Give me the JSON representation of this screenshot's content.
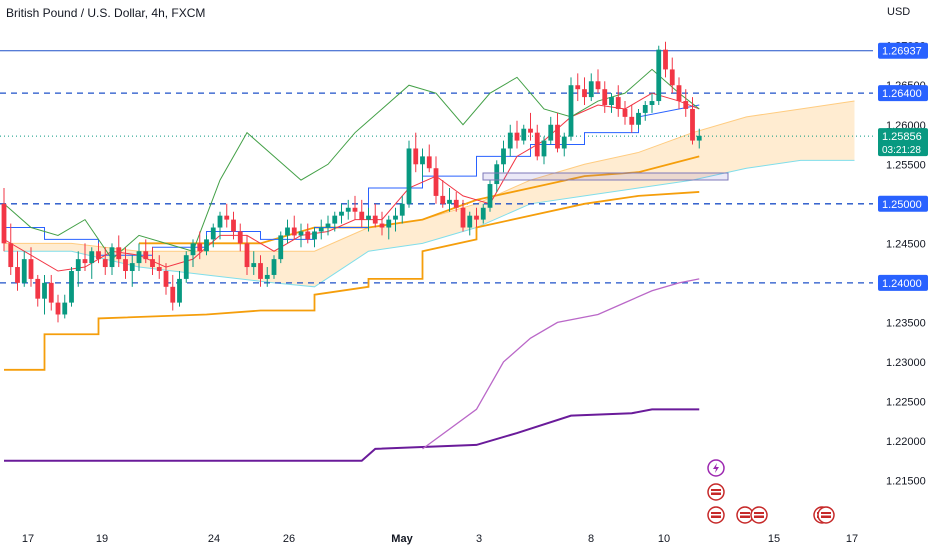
{
  "chart_data": {
    "type": "candlestick",
    "title": "British Pound / U.S. Dollar, 4h, FXCM",
    "currency": "USD",
    "grid": false,
    "colors": {
      "up": "#089981",
      "down": "#f23645",
      "kijun": "#2962ff",
      "tenkan": "#f23645",
      "chikou": "#43a047",
      "cloud_bull": "#b2ebf2",
      "cloud_bear": "#ffe0b2",
      "ma_orange": "#f59e0b",
      "violet_dark": "#6a1b9a",
      "violet_light": "#ba68c8",
      "level": "#1e50c8"
    },
    "y_axis": {
      "min": 1.21,
      "max": 1.273,
      "ticks": [
        "1.21500",
        "1.22000",
        "1.22500",
        "1.23000",
        "1.23500",
        "1.24000",
        "1.24500",
        "1.25000",
        "1.25500",
        "1.26000",
        "1.26500",
        "1.27000"
      ]
    },
    "x_axis": {
      "ticks": [
        {
          "label": "17",
          "x": 17
        },
        {
          "label": "19",
          "x": 19
        },
        {
          "label": "24",
          "x": 24
        },
        {
          "label": "26",
          "x": 26
        },
        {
          "label": "May",
          "x": 31
        },
        {
          "label": "3",
          "x": 35
        },
        {
          "label": "8",
          "x": 41
        },
        {
          "label": "10",
          "x": 45
        },
        {
          "label": "15",
          "x": 51
        },
        {
          "label": "17",
          "x": 55
        }
      ]
    },
    "levels": [
      {
        "price": 1.26937,
        "label": "1.26937",
        "style": "solid"
      },
      {
        "price": 1.264,
        "label": "1.26400",
        "style": "dashed"
      },
      {
        "price": 1.25,
        "label": "1.25000",
        "style": "dashed"
      },
      {
        "price": 1.24,
        "label": "1.24000",
        "style": "dashed"
      }
    ],
    "last_price": {
      "label": "1.25856",
      "countdown": "03:21:28",
      "price": 1.25856
    },
    "candles": [
      [
        1.25,
        1.252,
        1.244,
        1.245
      ],
      [
        1.245,
        1.2475,
        1.241,
        1.242
      ],
      [
        1.242,
        1.244,
        1.239,
        1.24
      ],
      [
        1.24,
        1.244,
        1.2395,
        1.243
      ],
      [
        1.243,
        1.2445,
        1.2395,
        1.2405
      ],
      [
        1.2405,
        1.241,
        1.237,
        1.238
      ],
      [
        1.238,
        1.241,
        1.236,
        1.24
      ],
      [
        1.24,
        1.241,
        1.2365,
        1.2375
      ],
      [
        1.2375,
        1.2385,
        1.235,
        1.236
      ],
      [
        1.236,
        1.2385,
        1.2355,
        1.2375
      ],
      [
        1.2375,
        1.242,
        1.237,
        1.2415
      ],
      [
        1.2415,
        1.244,
        1.2395,
        1.243
      ],
      [
        1.243,
        1.245,
        1.2415,
        1.2425
      ],
      [
        1.2425,
        1.2445,
        1.2405,
        1.244
      ],
      [
        1.244,
        1.245,
        1.2425,
        1.243
      ],
      [
        1.243,
        1.2445,
        1.241,
        1.242
      ],
      [
        1.242,
        1.245,
        1.241,
        1.2445
      ],
      [
        1.2445,
        1.246,
        1.242,
        1.243
      ],
      [
        1.243,
        1.2445,
        1.2405,
        1.2415
      ],
      [
        1.2415,
        1.2435,
        1.2395,
        1.2425
      ],
      [
        1.2425,
        1.245,
        1.2415,
        1.244
      ],
      [
        1.244,
        1.2455,
        1.2425,
        1.243
      ],
      [
        1.243,
        1.2445,
        1.241,
        1.242
      ],
      [
        1.242,
        1.2435,
        1.2405,
        1.2415
      ],
      [
        1.2415,
        1.2425,
        1.2385,
        1.2395
      ],
      [
        1.2395,
        1.241,
        1.2365,
        1.2375
      ],
      [
        1.2375,
        1.2415,
        1.237,
        1.2405
      ],
      [
        1.2405,
        1.244,
        1.24,
        1.2435
      ],
      [
        1.2435,
        1.2455,
        1.242,
        1.245
      ],
      [
        1.245,
        1.2465,
        1.243,
        1.244
      ],
      [
        1.244,
        1.246,
        1.2435,
        1.2455
      ],
      [
        1.2455,
        1.2475,
        1.2445,
        1.247
      ],
      [
        1.247,
        1.249,
        1.2455,
        1.2485
      ],
      [
        1.2485,
        1.25,
        1.247,
        1.248
      ],
      [
        1.248,
        1.249,
        1.2455,
        1.2465
      ],
      [
        1.2465,
        1.2475,
        1.244,
        1.245
      ],
      [
        1.245,
        1.246,
        1.241,
        1.242
      ],
      [
        1.242,
        1.244,
        1.241,
        1.2425
      ],
      [
        1.2425,
        1.2435,
        1.2395,
        1.2405
      ],
      [
        1.2405,
        1.242,
        1.2395,
        1.241
      ],
      [
        1.241,
        1.2435,
        1.2405,
        1.243
      ],
      [
        1.243,
        1.2465,
        1.2425,
        1.246
      ],
      [
        1.246,
        1.248,
        1.245,
        1.247
      ],
      [
        1.247,
        1.2485,
        1.2455,
        1.246
      ],
      [
        1.246,
        1.2475,
        1.2445,
        1.2465
      ],
      [
        1.2465,
        1.2475,
        1.245,
        1.2455
      ],
      [
        1.2455,
        1.247,
        1.2445,
        1.2465
      ],
      [
        1.2465,
        1.248,
        1.2455,
        1.247
      ],
      [
        1.247,
        1.2485,
        1.246,
        1.2475
      ],
      [
        1.2475,
        1.249,
        1.2465,
        1.2485
      ],
      [
        1.2485,
        1.25,
        1.2475,
        1.249
      ],
      [
        1.249,
        1.2505,
        1.248,
        1.2495
      ],
      [
        1.2495,
        1.251,
        1.248,
        1.249
      ],
      [
        1.249,
        1.2505,
        1.247,
        1.248
      ],
      [
        1.248,
        1.2495,
        1.2465,
        1.2485
      ],
      [
        1.2485,
        1.25,
        1.247,
        1.2475
      ],
      [
        1.2475,
        1.249,
        1.246,
        1.247
      ],
      [
        1.247,
        1.2485,
        1.2455,
        1.248
      ],
      [
        1.248,
        1.2495,
        1.2465,
        1.2485
      ],
      [
        1.2485,
        1.251,
        1.2475,
        1.25
      ],
      [
        1.25,
        1.258,
        1.2495,
        1.257
      ],
      [
        1.257,
        1.259,
        1.254,
        1.255
      ],
      [
        1.255,
        1.257,
        1.253,
        1.256
      ],
      [
        1.256,
        1.2575,
        1.254,
        1.2545
      ],
      [
        1.2545,
        1.256,
        1.25,
        1.251
      ],
      [
        1.251,
        1.253,
        1.2495,
        1.25
      ],
      [
        1.25,
        1.252,
        1.249,
        1.2505
      ],
      [
        1.2505,
        1.2515,
        1.249,
        1.2495
      ],
      [
        1.2495,
        1.2505,
        1.2465,
        1.247
      ],
      [
        1.247,
        1.249,
        1.246,
        1.2485
      ],
      [
        1.2485,
        1.2495,
        1.247,
        1.248
      ],
      [
        1.248,
        1.25,
        1.2475,
        1.2495
      ],
      [
        1.2495,
        1.253,
        1.249,
        1.2525
      ],
      [
        1.2525,
        1.2555,
        1.2515,
        1.255
      ],
      [
        1.255,
        1.258,
        1.254,
        1.257
      ],
      [
        1.257,
        1.26,
        1.256,
        1.259
      ],
      [
        1.259,
        1.2605,
        1.257,
        1.258
      ],
      [
        1.258,
        1.26,
        1.2575,
        1.2595
      ],
      [
        1.2595,
        1.2615,
        1.258,
        1.259
      ],
      [
        1.259,
        1.26,
        1.2555,
        1.256
      ],
      [
        1.256,
        1.2585,
        1.255,
        1.258
      ],
      [
        1.258,
        1.261,
        1.2575,
        1.26
      ],
      [
        1.26,
        1.2615,
        1.2565,
        1.257
      ],
      [
        1.257,
        1.259,
        1.256,
        1.2585
      ],
      [
        1.2585,
        1.266,
        1.258,
        1.265
      ],
      [
        1.265,
        1.2665,
        1.263,
        1.2645
      ],
      [
        1.2645,
        1.266,
        1.2625,
        1.2635
      ],
      [
        1.2635,
        1.2665,
        1.263,
        1.2655
      ],
      [
        1.2655,
        1.267,
        1.264,
        1.2645
      ],
      [
        1.2645,
        1.2655,
        1.2615,
        1.2625
      ],
      [
        1.2625,
        1.264,
        1.2615,
        1.2635
      ],
      [
        1.2635,
        1.265,
        1.261,
        1.262
      ],
      [
        1.262,
        1.263,
        1.26,
        1.261
      ],
      [
        1.261,
        1.2625,
        1.259,
        1.26
      ],
      [
        1.26,
        1.262,
        1.2595,
        1.2615
      ],
      [
        1.2615,
        1.263,
        1.2605,
        1.2625
      ],
      [
        1.2625,
        1.264,
        1.2615,
        1.263
      ],
      [
        1.263,
        1.27,
        1.2625,
        1.2695
      ],
      [
        1.2695,
        1.2705,
        1.266,
        1.267
      ],
      [
        1.267,
        1.2685,
        1.264,
        1.265
      ],
      [
        1.265,
        1.266,
        1.262,
        1.263
      ],
      [
        1.263,
        1.2645,
        1.261,
        1.262
      ],
      [
        1.262,
        1.2635,
        1.2575,
        1.258
      ],
      [
        1.258,
        1.2595,
        1.257,
        1.2586
      ]
    ],
    "kijun": [
      [
        0,
        1.247
      ],
      [
        6,
        1.247
      ],
      [
        6,
        1.2455
      ],
      [
        14,
        1.2455
      ],
      [
        14,
        1.2435
      ],
      [
        22,
        1.2435
      ],
      [
        22,
        1.2445
      ],
      [
        30,
        1.2445
      ],
      [
        30,
        1.2465
      ],
      [
        38,
        1.2465
      ],
      [
        38,
        1.2455
      ],
      [
        46,
        1.2455
      ],
      [
        46,
        1.247
      ],
      [
        54,
        1.247
      ],
      [
        54,
        1.252
      ],
      [
        62,
        1.252
      ],
      [
        62,
        1.2535
      ],
      [
        70,
        1.2535
      ],
      [
        70,
        1.256
      ],
      [
        78,
        1.256
      ],
      [
        78,
        1.2575
      ],
      [
        86,
        1.2575
      ],
      [
        86,
        1.259
      ],
      [
        94,
        1.259
      ],
      [
        94,
        1.261
      ],
      [
        103,
        1.2625
      ]
    ],
    "tenkan": [
      [
        0,
        1.2455
      ],
      [
        4,
        1.2435
      ],
      [
        8,
        1.2415
      ],
      [
        12,
        1.242
      ],
      [
        16,
        1.244
      ],
      [
        20,
        1.2435
      ],
      [
        24,
        1.242
      ],
      [
        28,
        1.243
      ],
      [
        32,
        1.246
      ],
      [
        36,
        1.246
      ],
      [
        40,
        1.244
      ],
      [
        44,
        1.246
      ],
      [
        48,
        1.2465
      ],
      [
        52,
        1.248
      ],
      [
        56,
        1.248
      ],
      [
        60,
        1.252
      ],
      [
        64,
        1.2535
      ],
      [
        68,
        1.251
      ],
      [
        72,
        1.25
      ],
      [
        76,
        1.256
      ],
      [
        80,
        1.258
      ],
      [
        84,
        1.261
      ],
      [
        88,
        1.2625
      ],
      [
        92,
        1.262
      ],
      [
        96,
        1.264
      ],
      [
        100,
        1.263
      ],
      [
        103,
        1.262
      ]
    ],
    "chikou": [
      [
        0,
        1.25
      ],
      [
        4,
        1.247
      ],
      [
        8,
        1.246
      ],
      [
        12,
        1.248
      ],
      [
        16,
        1.243
      ],
      [
        20,
        1.246
      ],
      [
        24,
        1.245
      ],
      [
        28,
        1.244
      ],
      [
        32,
        1.253
      ],
      [
        36,
        1.259
      ],
      [
        40,
        1.256
      ],
      [
        44,
        1.253
      ],
      [
        48,
        1.255
      ],
      [
        52,
        1.259
      ],
      [
        56,
        1.262
      ],
      [
        60,
        1.265
      ],
      [
        64,
        1.264
      ],
      [
        68,
        1.26
      ],
      [
        72,
        1.264
      ],
      [
        76,
        1.266
      ],
      [
        80,
        1.262
      ],
      [
        84,
        1.261
      ],
      [
        88,
        1.263
      ],
      [
        92,
        1.264
      ],
      [
        96,
        1.267
      ],
      [
        100,
        1.264
      ],
      [
        103,
        1.262
      ]
    ],
    "ma_orange": [
      [
        0,
        1.229
      ],
      [
        6,
        1.229
      ],
      [
        6,
        1.2335
      ],
      [
        14,
        1.2335
      ],
      [
        14,
        1.2355
      ],
      [
        30,
        1.236
      ],
      [
        38,
        1.2365
      ],
      [
        46,
        1.2365
      ],
      [
        46,
        1.2385
      ],
      [
        54,
        1.2395
      ],
      [
        54,
        1.2405
      ],
      [
        62,
        1.2405
      ],
      [
        62,
        1.244
      ],
      [
        70,
        1.2455
      ],
      [
        70,
        1.247
      ],
      [
        78,
        1.2485
      ],
      [
        86,
        1.25
      ],
      [
        94,
        1.251
      ],
      [
        103,
        1.2515
      ]
    ],
    "ma_orange2": [
      [
        20,
        1.245
      ],
      [
        38,
        1.245
      ],
      [
        46,
        1.247
      ],
      [
        54,
        1.247
      ],
      [
        62,
        1.248
      ],
      [
        70,
        1.2505
      ],
      [
        78,
        1.252
      ],
      [
        86,
        1.2535
      ],
      [
        94,
        1.254
      ],
      [
        103,
        1.256
      ]
    ],
    "violet_light": [
      [
        62,
        1.219
      ],
      [
        70,
        1.224
      ],
      [
        74,
        1.23
      ],
      [
        78,
        1.233
      ],
      [
        82,
        1.235
      ],
      [
        88,
        1.236
      ],
      [
        92,
        1.2375
      ],
      [
        96,
        1.239
      ],
      [
        100,
        1.24
      ],
      [
        103,
        1.2405
      ]
    ],
    "violet_dark": [
      [
        0,
        1.2175
      ],
      [
        53,
        1.2175
      ],
      [
        55,
        1.219
      ],
      [
        70,
        1.2195
      ],
      [
        76,
        1.221
      ],
      [
        84,
        1.2232
      ],
      [
        93,
        1.2235
      ],
      [
        96,
        1.224
      ],
      [
        103,
        1.224
      ]
    ],
    "cloud": [
      [
        0,
        1.245,
        1.244
      ],
      [
        10,
        1.245,
        1.244
      ],
      [
        20,
        1.244,
        1.242
      ],
      [
        30,
        1.244,
        1.241
      ],
      [
        40,
        1.244,
        1.24
      ],
      [
        46,
        1.244,
        1.2395
      ],
      [
        54,
        1.247,
        1.244
      ],
      [
        62,
        1.248,
        1.245
      ],
      [
        70,
        1.25,
        1.247
      ],
      [
        78,
        1.253,
        1.25
      ],
      [
        86,
        1.255,
        1.251
      ],
      [
        94,
        1.2565,
        1.252
      ],
      [
        102,
        1.259,
        1.253
      ],
      [
        110,
        1.261,
        1.2545
      ],
      [
        118,
        1.262,
        1.2555
      ],
      [
        126,
        1.263,
        1.2555
      ]
    ]
  }
}
